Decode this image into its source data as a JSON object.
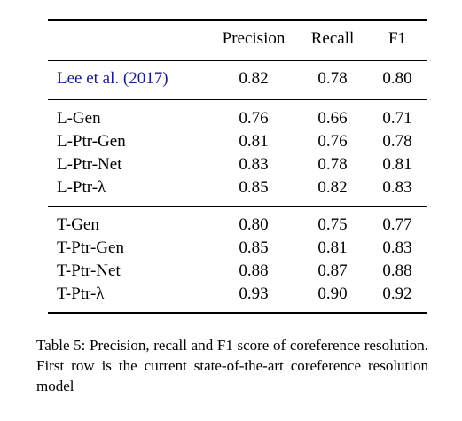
{
  "table": {
    "headers": [
      "",
      "Precision",
      "Recall",
      "F1"
    ],
    "baseline": {
      "method": "Lee et al. (2017)",
      "precision": "0.82",
      "recall": "0.78",
      "f1": "0.80"
    },
    "groups": [
      {
        "rows": [
          {
            "method": "L-Gen",
            "precision": "0.76",
            "recall": "0.66",
            "f1": "0.71"
          },
          {
            "method": "L-Ptr-Gen",
            "precision": "0.81",
            "recall": "0.76",
            "f1": "0.78"
          },
          {
            "method": "L-Ptr-Net",
            "precision": "0.83",
            "recall": "0.78",
            "f1": "0.81"
          },
          {
            "method": "L-Ptr-λ",
            "precision": "0.85",
            "recall": "0.82",
            "f1": "0.83"
          }
        ]
      },
      {
        "rows": [
          {
            "method": "T-Gen",
            "precision": "0.80",
            "recall": "0.75",
            "f1": "0.77"
          },
          {
            "method": "T-Ptr-Gen",
            "precision": "0.85",
            "recall": "0.81",
            "f1": "0.83"
          },
          {
            "method": "T-Ptr-Net",
            "precision": "0.88",
            "recall": "0.87",
            "f1": "0.88"
          },
          {
            "method": "T-Ptr-λ",
            "precision": "0.93",
            "recall": "0.90",
            "f1": "0.92"
          }
        ]
      }
    ]
  },
  "caption": "Table 5: Precision, recall and F1 score of coreference resolution. First row is the current state-of-the-art coreference resolution model"
}
